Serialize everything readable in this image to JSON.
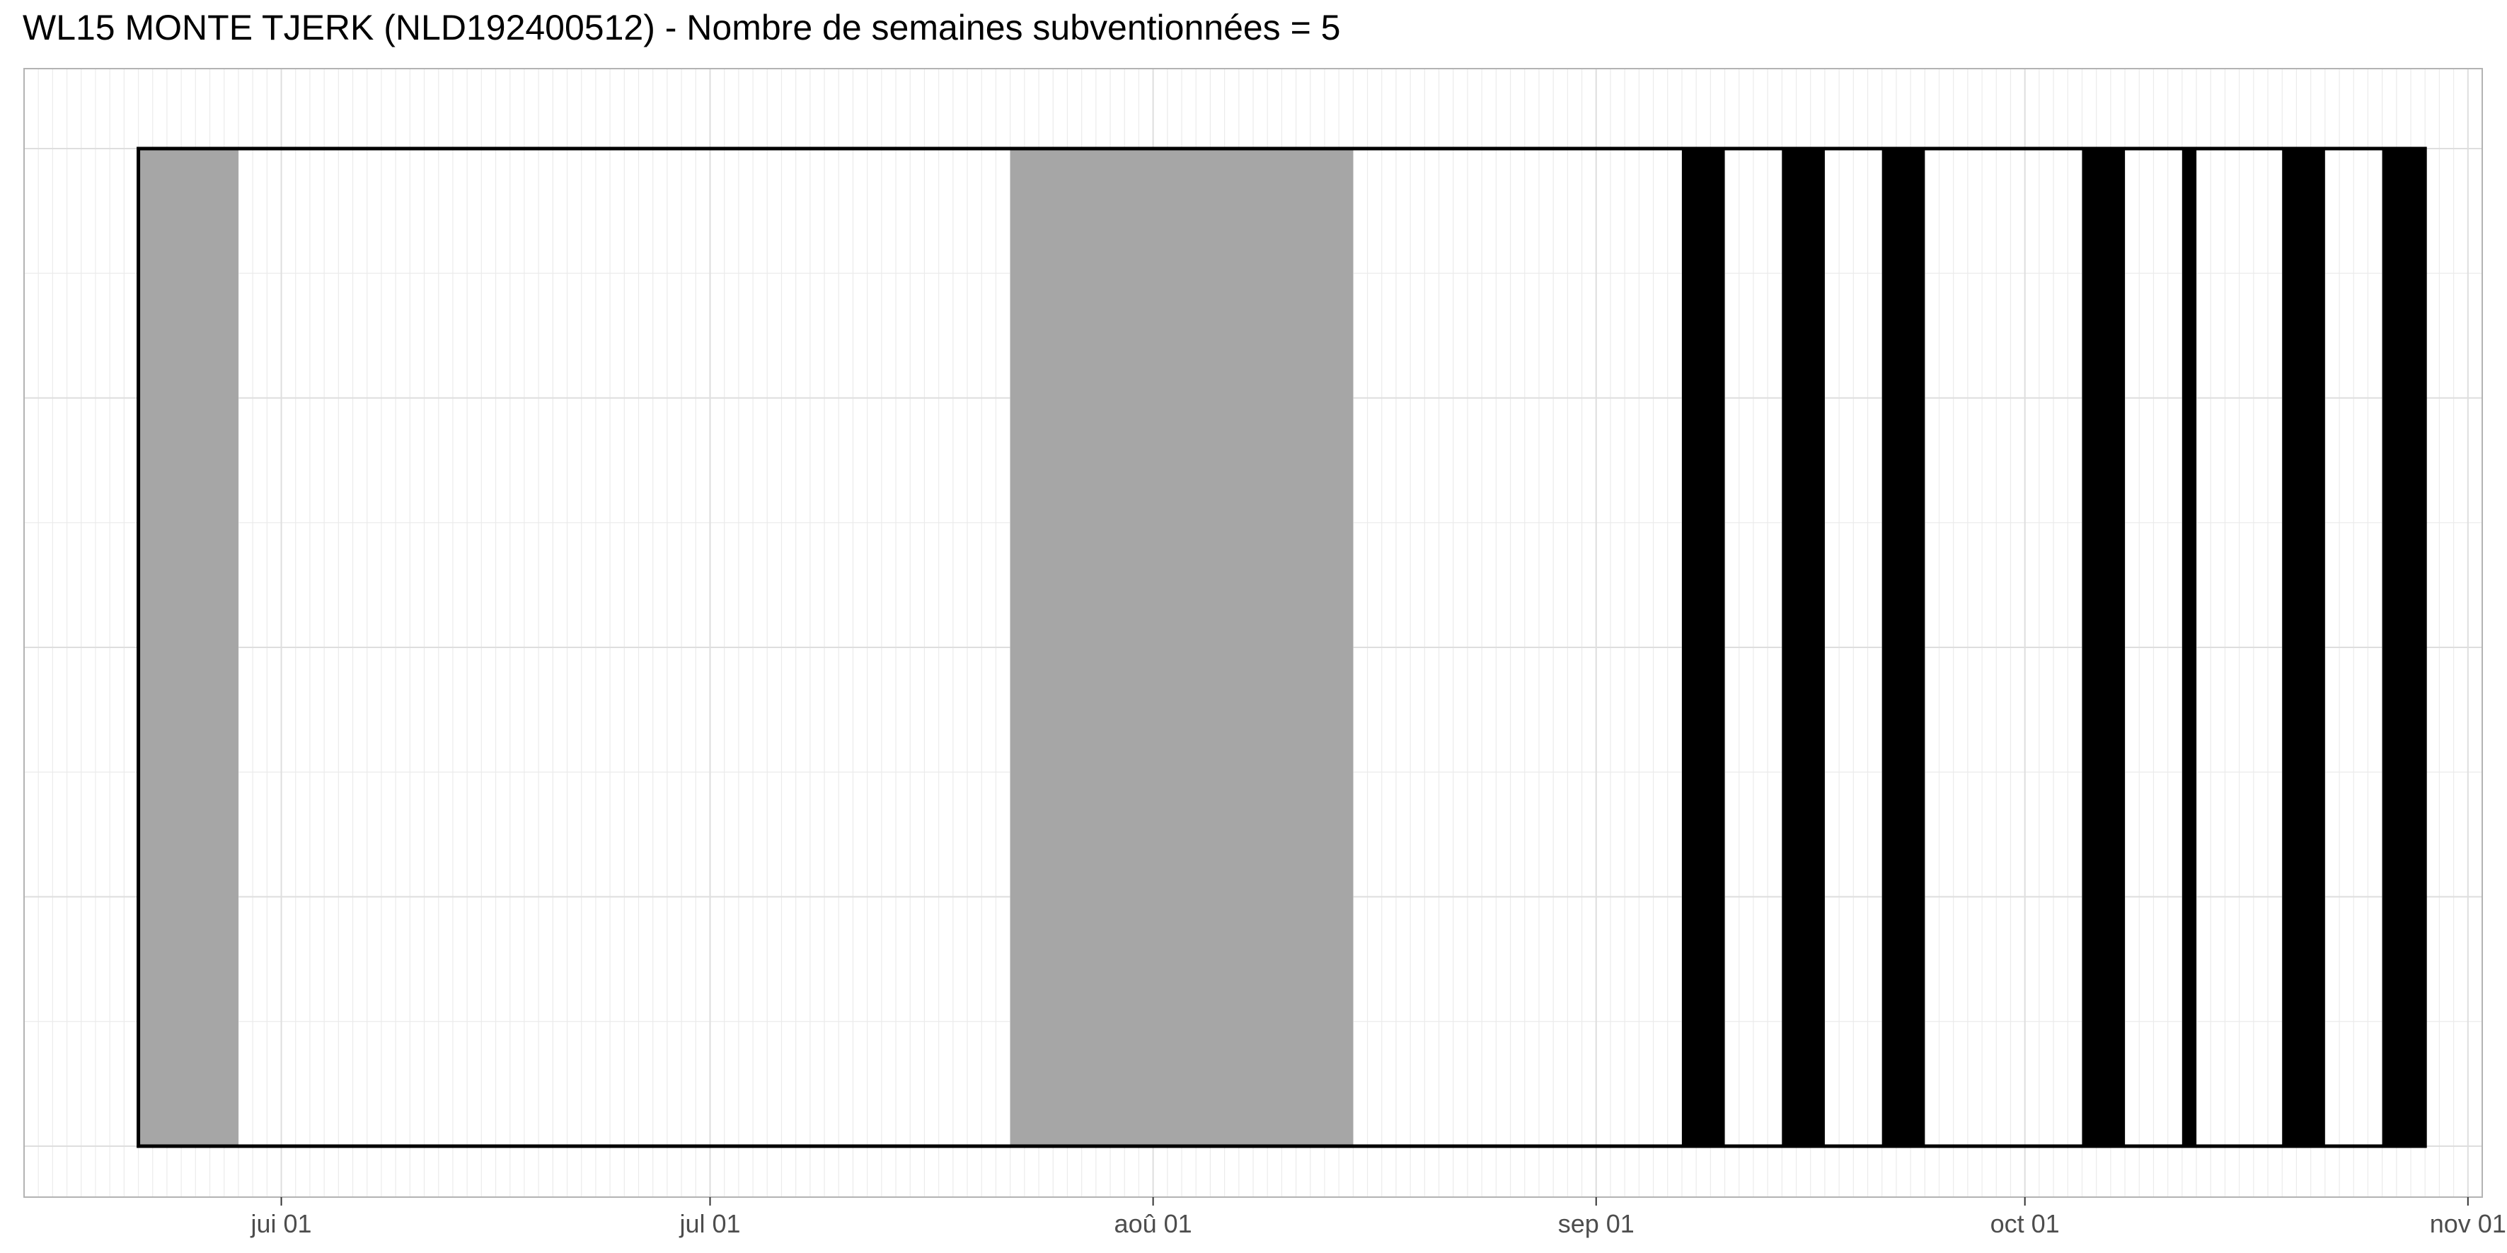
{
  "chart_data": {
    "type": "bar",
    "title": "WL15 MONTE TJERK (NLD192400512) - Nombre de semaines subventionnées = 5",
    "xlabel": "",
    "ylabel": "",
    "x_axis": {
      "type": "date",
      "range": [
        "2024-05-14",
        "2024-11-02"
      ],
      "ticks": [
        {
          "date": "2024-06-01",
          "label": "jui 01"
        },
        {
          "date": "2024-07-01",
          "label": "jul 01"
        },
        {
          "date": "2024-08-01",
          "label": "aoû 01"
        },
        {
          "date": "2024-09-01",
          "label": "sep 01"
        },
        {
          "date": "2024-10-01",
          "label": "oct 01"
        },
        {
          "date": "2024-11-01",
          "label": "nov 01"
        }
      ]
    },
    "period": {
      "start": "2024-05-22",
      "end": "2024-10-29"
    },
    "grid": true,
    "legend": "none",
    "series": [
      {
        "color": "#a6a6a6",
        "intervals": [
          {
            "start": "2024-05-22",
            "end": "2024-05-29"
          },
          {
            "start": "2024-07-22",
            "end": "2024-08-15"
          }
        ]
      },
      {
        "color": "#000000",
        "intervals": [
          {
            "start": "2024-09-07",
            "end": "2024-09-10"
          },
          {
            "start": "2024-09-14",
            "end": "2024-09-17"
          },
          {
            "start": "2024-09-21",
            "end": "2024-09-24"
          },
          {
            "start": "2024-10-05",
            "end": "2024-10-08"
          },
          {
            "start": "2024-10-12",
            "end": "2024-10-13"
          },
          {
            "start": "2024-10-19",
            "end": "2024-10-22"
          },
          {
            "start": "2024-10-26",
            "end": "2024-10-29"
          }
        ]
      }
    ]
  }
}
